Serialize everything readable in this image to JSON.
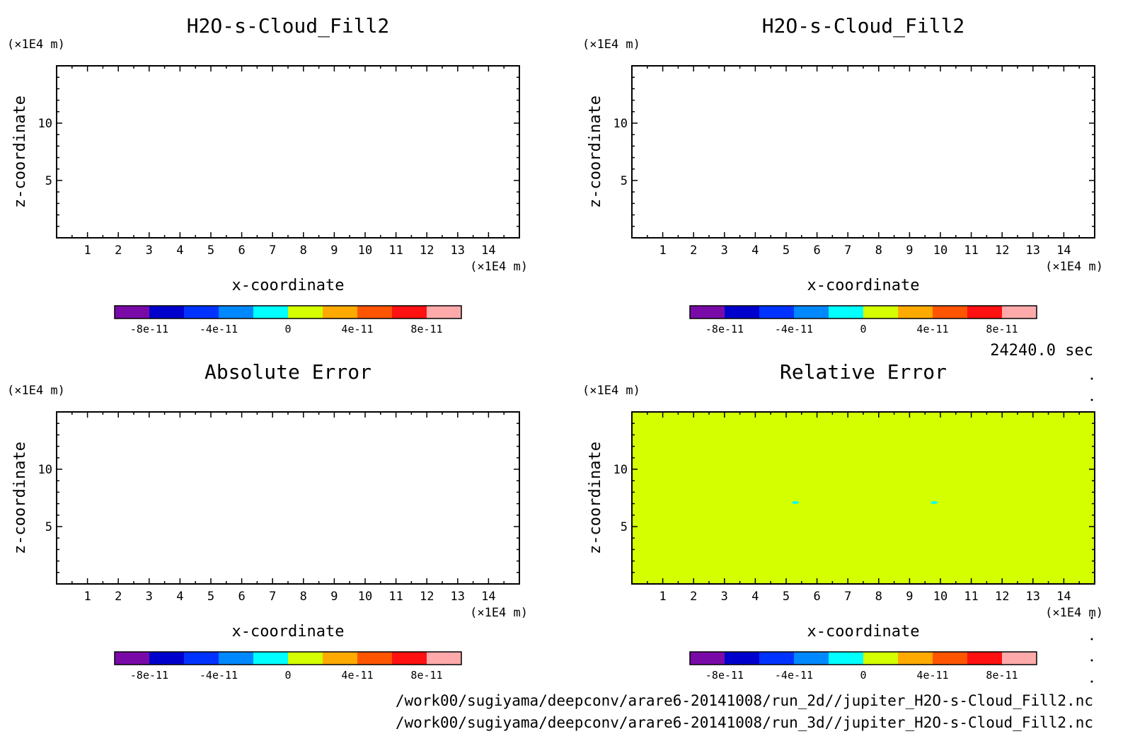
{
  "charts": [
    {
      "title": "H2O-s-Cloud_Fill2",
      "xlabel": "x-coordinate",
      "ylabel": "z-coordinate",
      "x_unit": "(×1E4 m)",
      "y_unit": "(×1E4 m)",
      "xticks": [
        1,
        2,
        3,
        4,
        5,
        6,
        7,
        8,
        9,
        10,
        11,
        12,
        13,
        14
      ],
      "yticks": [
        5,
        10
      ],
      "fill": "#ffffff",
      "blobs": []
    },
    {
      "title": "H2O-s-Cloud_Fill2",
      "xlabel": "x-coordinate",
      "ylabel": "z-coordinate",
      "x_unit": "(×1E4 m)",
      "y_unit": "(×1E4 m)",
      "xticks": [
        1,
        2,
        3,
        4,
        5,
        6,
        7,
        8,
        9,
        10,
        11,
        12,
        13,
        14
      ],
      "yticks": [
        5,
        10
      ],
      "fill": "#ffffff",
      "blobs": []
    },
    {
      "title": "Absolute Error",
      "xlabel": "x-coordinate",
      "ylabel": "z-coordinate",
      "x_unit": "(×1E4 m)",
      "y_unit": "(×1E4 m)",
      "xticks": [
        1,
        2,
        3,
        4,
        5,
        6,
        7,
        8,
        9,
        10,
        11,
        12,
        13,
        14
      ],
      "yticks": [
        5,
        10
      ],
      "fill": "#ffffff",
      "blobs": []
    },
    {
      "title": "Relative Error",
      "xlabel": "x-coordinate",
      "ylabel": "z-coordinate",
      "x_unit": "(×1E4 m)",
      "y_unit": "(×1E4 m)",
      "xticks": [
        1,
        2,
        3,
        4,
        5,
        6,
        7,
        8,
        9,
        10,
        11,
        12,
        13,
        14
      ],
      "yticks": [
        5,
        10
      ],
      "fill": "#d4ff00",
      "blobs": [
        {
          "x": 5.3,
          "z": 7.1,
          "color": "#00ffff"
        },
        {
          "x": 9.8,
          "z": 7.1,
          "color": "#00ffff"
        }
      ]
    }
  ],
  "chart_data": {
    "type": "heatmap",
    "panels": [
      {
        "title": "H2O-s-Cloud_Fill2",
        "xlabel": "x-coordinate",
        "ylabel": "z-coordinate",
        "xlim": [
          0,
          15
        ],
        "ylim": [
          0,
          15
        ],
        "field": "blank"
      },
      {
        "title": "H2O-s-Cloud_Fill2",
        "xlabel": "x-coordinate",
        "ylabel": "z-coordinate",
        "xlim": [
          0,
          15
        ],
        "ylim": [
          0,
          15
        ],
        "field": "blank"
      },
      {
        "title": "Absolute Error",
        "xlabel": "x-coordinate",
        "ylabel": "z-coordinate",
        "xlim": [
          0,
          15
        ],
        "ylim": [
          0,
          15
        ],
        "field": "blank"
      },
      {
        "title": "Relative Error",
        "xlabel": "x-coordinate",
        "ylabel": "z-coordinate",
        "xlim": [
          0,
          15
        ],
        "ylim": [
          0,
          15
        ],
        "field": "uniform value in the 0 to 2e-11 band, two small spots in the -2e-11 to 0 band near x=5.3 and x=9.8, z≈7.1"
      }
    ],
    "colorbar": {
      "min": -1e-10,
      "max": 1e-10,
      "step": 2e-11,
      "colors": [
        "#7a0aa8",
        "#0000cc",
        "#0033ff",
        "#0088ff",
        "#00ffff",
        "#d4ff00",
        "#ffaa00",
        "#ff5500",
        "#ff1111",
        "#ffaaaa"
      ],
      "tick_labels": [
        "-8e-11",
        "-4e-11",
        "0",
        "4e-11",
        "8e-11"
      ]
    }
  },
  "colorbar_labels": [
    "-8e-11",
    "-4e-11",
    "0",
    "4e-11",
    "8e-11"
  ],
  "time_label": "24240.0 sec",
  "file_paths": [
    "/work00/sugiyama/deepconv/arare6-20141008/run_2d//jupiter_H2O-s-Cloud_Fill2.nc",
    "/work00/sugiyama/deepconv/arare6-20141008/run_3d//jupiter_H2O-s-Cloud_Fill2.nc"
  ]
}
